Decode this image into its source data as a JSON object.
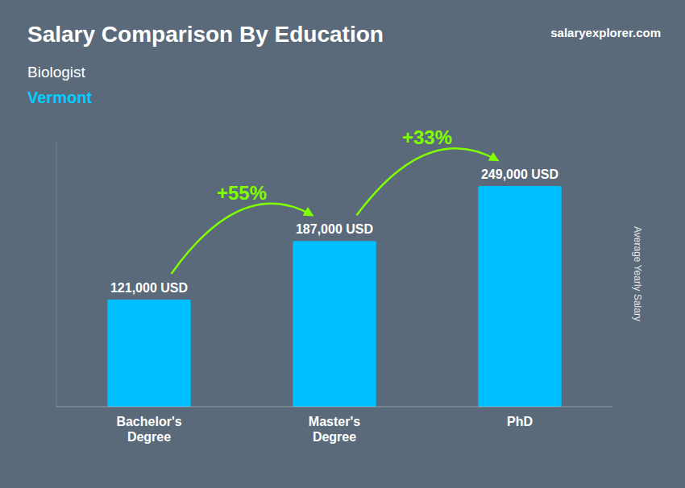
{
  "chart_data": {
    "type": "bar",
    "title": "Salary Comparison By Education",
    "subtitle": "Biologist",
    "location": "Vermont",
    "source": "salaryexplorer.com",
    "ylabel": "Average Yearly Salary",
    "categories": [
      "Bachelor's\nDegree",
      "Master's\nDegree",
      "PhD"
    ],
    "values": [
      121000,
      187000,
      249000
    ],
    "value_labels": [
      "121,000 USD",
      "187,000 USD",
      "249,000 USD"
    ],
    "color": "#00BFFF",
    "annotations": [
      "+55%",
      "+33%"
    ],
    "ylim": [
      0,
      300000
    ],
    "data_labels": true,
    "tick_labels": "x",
    "grid": false
  }
}
